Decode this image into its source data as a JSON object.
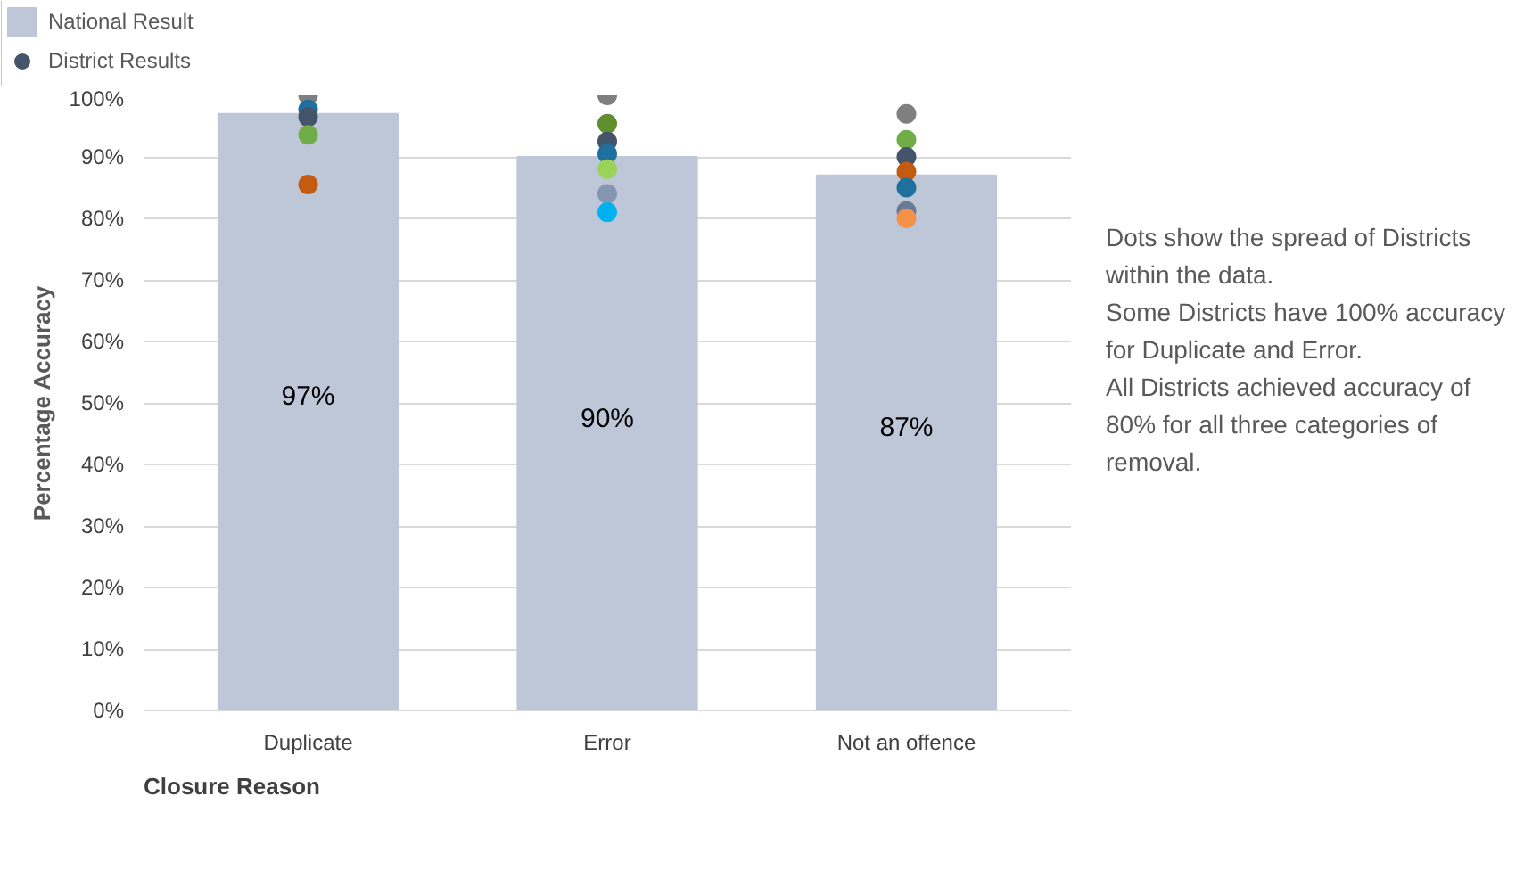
{
  "chart_data": {
    "type": "bar",
    "categories": [
      "Duplicate",
      "Error",
      "Not an offence"
    ],
    "xlabel": "Closure Reason",
    "ylabel": "Percentage Accuracy",
    "ylim": [
      0,
      100
    ],
    "yticks": [
      {
        "value": 0,
        "label": "0%"
      },
      {
        "value": 10,
        "label": "10%"
      },
      {
        "value": 20,
        "label": "20%"
      },
      {
        "value": 30,
        "label": "30%"
      },
      {
        "value": 40,
        "label": "40%"
      },
      {
        "value": 50,
        "label": "50%"
      },
      {
        "value": 60,
        "label": "60%"
      },
      {
        "value": 70,
        "label": "70%"
      },
      {
        "value": 80,
        "label": "80%"
      },
      {
        "value": 90,
        "label": "90%"
      },
      {
        "value": 100,
        "label": "100%"
      }
    ],
    "grid": "y",
    "legend": "top left",
    "series": [
      {
        "type": "bar",
        "name": "National Result",
        "color": "#bdc7d7",
        "values": [
          97,
          90,
          87
        ],
        "value_labels": [
          "97%",
          "90%",
          "87%"
        ]
      },
      {
        "type": "scatter",
        "name": "District Results",
        "color": "#44546a",
        "marker": "circle",
        "x": [
          "Duplicate",
          "Duplicate",
          "Duplicate",
          "Duplicate",
          "Duplicate",
          "Error",
          "Error",
          "Error",
          "Error",
          "Error",
          "Error",
          "Error",
          "Not an offence",
          "Not an offence",
          "Not an offence",
          "Not an offence",
          "Not an offence",
          "Not an offence",
          "Not an offence"
        ],
        "values": [
          100,
          97.7,
          96.5,
          93.6,
          85.5,
          100,
          95.4,
          92.5,
          90.5,
          88,
          84,
          81,
          97,
          92.8,
          90,
          87.6,
          85,
          81.2,
          80
        ],
        "colors": [
          "#7f7f7f",
          "#1f6f9f",
          "#44546a",
          "#70ad47",
          "#c55a11",
          "#7f7f7f",
          "#5f8f2f",
          "#44546a",
          "#1f6f9f",
          "#9bd35a",
          "#8496b0",
          "#00b0f0",
          "#7f7f7f",
          "#70ad47",
          "#44546a",
          "#c55a11",
          "#1f6f9f",
          "#6a7a94",
          "#f4924a"
        ]
      }
    ],
    "annotations": [
      "Dots show the spread of Districts within the data.",
      "Some Districts have 100% accuracy for Duplicate and Error.",
      "All Districts achieved accuracy of 80% for all three categories of removal."
    ]
  }
}
